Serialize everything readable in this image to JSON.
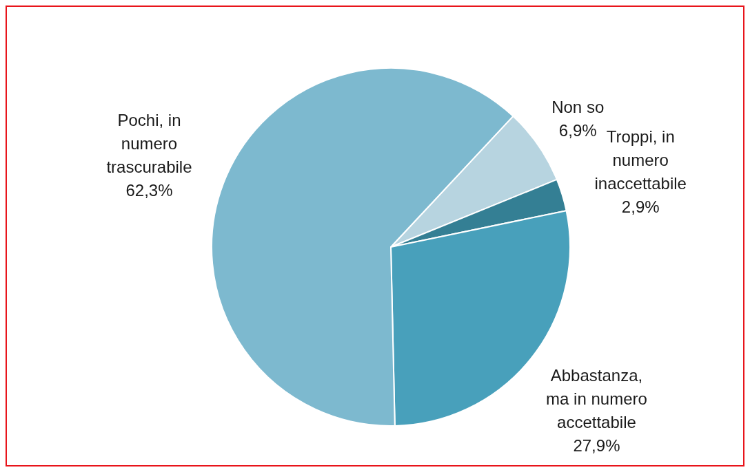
{
  "chart_data": {
    "type": "pie",
    "categories": [
      "Non so",
      "Troppi, in numero inaccettabile",
      "Abbastanza, ma in numero accettabile",
      "Pochi, in numero trascurabile"
    ],
    "values": [
      6.9,
      2.9,
      27.9,
      62.3
    ],
    "value_labels": [
      "6,9%",
      "2,9%",
      "27,9%",
      "62,3%"
    ],
    "colors": [
      "#b7d4e0",
      "#347f94",
      "#48a0bb",
      "#7db9cf"
    ],
    "legend": false
  }
}
